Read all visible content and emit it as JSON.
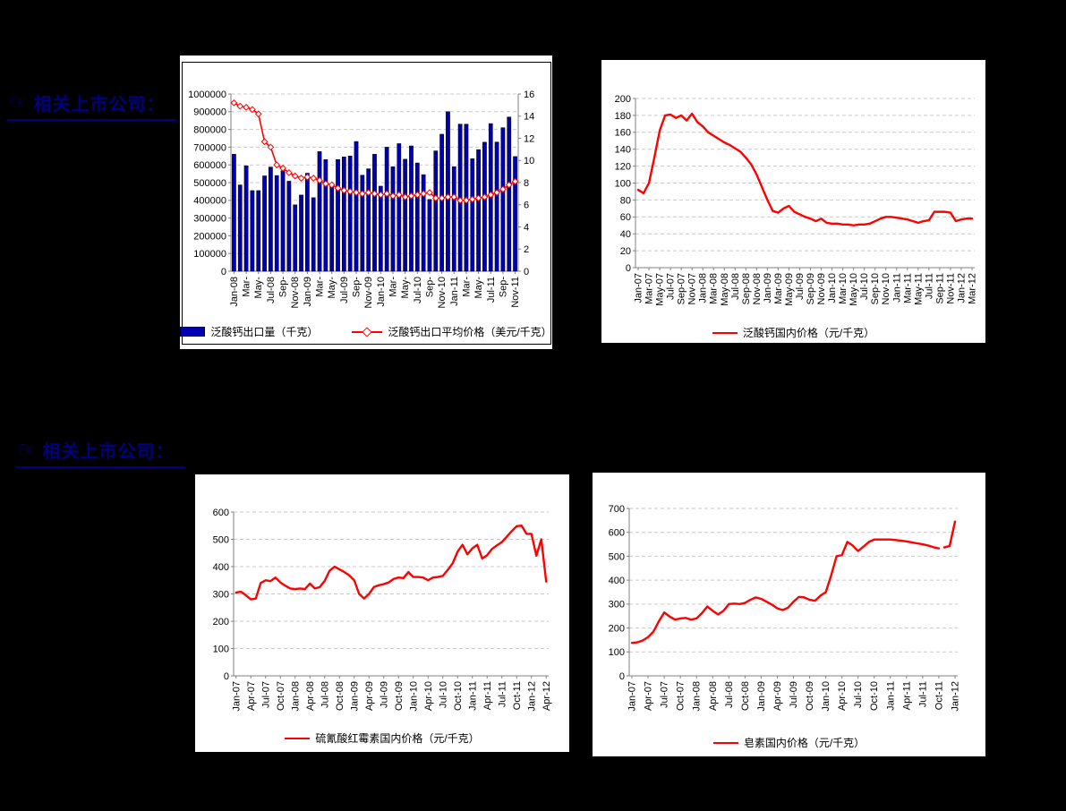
{
  "colors": {
    "page_bg": "#000000",
    "chart_bg": "#FFFFFF",
    "title": "#000080",
    "bar": "#0000B3",
    "line": "#FF0000",
    "grid": "#C9C9C9",
    "axis": "#808080",
    "text": "#000000"
  },
  "sections": [
    {
      "glyph": "☞",
      "title": "相关上市公司："
    },
    {
      "glyph": "☞",
      "title": "相关上市公司："
    }
  ],
  "chart_data": [
    {
      "type": "bar",
      "title": "",
      "categories": [
        "Jan-08",
        "Feb-08",
        "Mar-08",
        "Apr-08",
        "May-08",
        "Jun-08",
        "Jul-08",
        "Aug-08",
        "Sep-08",
        "Oct-08",
        "Nov-08",
        "Dec-08",
        "Jan-09",
        "Feb-09",
        "Mar-09",
        "Apr-09",
        "May-09",
        "Jun-09",
        "Jul-09",
        "Aug-09",
        "Sep-09",
        "Oct-09",
        "Nov-09",
        "Dec-09",
        "Jan-10",
        "Feb-10",
        "Mar-10",
        "Apr-10",
        "May-10",
        "Jun-10",
        "Jul-10",
        "Aug-10",
        "Sep-10",
        "Oct-10",
        "Nov-10",
        "Dec-10",
        "Jan-11",
        "Feb-11",
        "Mar-11",
        "Apr-11",
        "May-11",
        "Jun-11",
        "Jul-11",
        "Aug-11",
        "Sep-11",
        "Oct-11",
        "Nov-11"
      ],
      "x_tick_step": 2,
      "x_tick_labels": [
        "Jan-08",
        "Mar-",
        "May-",
        "Jul-08",
        "Sep-",
        "Nov-08",
        "Jan-09",
        "Mar-",
        "May-",
        "Jul-09",
        "Sep-",
        "Nov-09",
        "Jan-10",
        "Mar-",
        "May-",
        "Jul-10",
        "Sep-",
        "Nov-10",
        "Jan-11",
        "Mar-",
        "May-",
        "Jul-11",
        "Sep-",
        "Nov-11"
      ],
      "y_axis_left": {
        "min": 0,
        "max": 1000000,
        "step": 100000
      },
      "y_axis_right": {
        "min": 0,
        "max": 16,
        "step": 2
      },
      "grid": "dashed",
      "legend_position": "bottom",
      "series": [
        {
          "name": "泛酸钙出口量（千克）",
          "type": "bar",
          "axis": "left",
          "color": "#0000B3",
          "values": [
            660000,
            487000,
            595000,
            455000,
            455000,
            538000,
            588000,
            540000,
            567000,
            508000,
            375000,
            430000,
            553000,
            415000,
            675000,
            630000,
            485000,
            630000,
            645000,
            650000,
            732000,
            542000,
            578000,
            660000,
            480000,
            700000,
            590000,
            720000,
            632000,
            707000,
            611000,
            545000,
            405000,
            679000,
            773000,
            900000,
            590000,
            830000,
            830000,
            635000,
            686000,
            728000,
            833000,
            729000,
            810000,
            870000,
            647000
          ]
        },
        {
          "name": "泛酸钙出口平均价格（美元/千克）",
          "type": "line",
          "axis": "right",
          "color": "#FF0000",
          "marker": "open-diamond",
          "values": [
            15.2,
            14.9,
            14.8,
            14.6,
            14.2,
            11.7,
            11.2,
            9.6,
            9.3,
            8.9,
            8.6,
            8.4,
            8.5,
            8.4,
            8.2,
            7.9,
            7.8,
            7.5,
            7.3,
            7.2,
            7.1,
            7.0,
            7.1,
            7.0,
            6.9,
            7.0,
            6.8,
            6.9,
            6.7,
            6.8,
            6.9,
            7.0,
            7.1,
            6.6,
            6.6,
            6.7,
            6.7,
            6.4,
            6.4,
            6.5,
            6.6,
            6.7,
            6.9,
            7.1,
            7.4,
            7.8,
            8.1
          ]
        }
      ]
    },
    {
      "type": "line",
      "title": "",
      "categories": [
        "Jan-07",
        "Feb-07",
        "Mar-07",
        "Apr-07",
        "May-07",
        "Jun-07",
        "Jul-07",
        "Aug-07",
        "Sep-07",
        "Oct-07",
        "Nov-07",
        "Dec-07",
        "Jan-08",
        "Feb-08",
        "Mar-08",
        "Apr-08",
        "May-08",
        "Jun-08",
        "Jul-08",
        "Aug-08",
        "Sep-08",
        "Oct-08",
        "Nov-08",
        "Dec-08",
        "Jan-09",
        "Feb-09",
        "Mar-09",
        "Apr-09",
        "May-09",
        "Jun-09",
        "Jul-09",
        "Aug-09",
        "Sep-09",
        "Oct-09",
        "Nov-09",
        "Dec-09",
        "Jan-10",
        "Feb-10",
        "Mar-10",
        "Apr-10",
        "May-10",
        "Jun-10",
        "Jul-10",
        "Aug-10",
        "Sep-10",
        "Oct-10",
        "Nov-10",
        "Dec-10",
        "Jan-11",
        "Feb-11",
        "Mar-11",
        "Apr-11",
        "May-11",
        "Jun-11",
        "Jul-11",
        "Aug-11",
        "Sep-11",
        "Oct-11",
        "Nov-11",
        "Dec-11",
        "Jan-12",
        "Feb-12",
        "Mar-12"
      ],
      "x_tick_step": 2,
      "x_tick_labels": [
        "Jan-07",
        "Mar-07",
        "May-07",
        "Jul-07",
        "Sep-07",
        "Nov-07",
        "Jan-08",
        "Mar-08",
        "May-08",
        "Jul-08",
        "Sep-08",
        "Nov-08",
        "Jan-09",
        "Mar-09",
        "May-09",
        "Jul-09",
        "Sep-09",
        "Nov-09",
        "Jan-10",
        "Mar-10",
        "May-10",
        "Jul-10",
        "Sep-10",
        "Nov-10",
        "Jan-11",
        "Mar-11",
        "May-11",
        "Jul-11",
        "Sep-11",
        "Nov-11",
        "Jan-12",
        "Mar-12"
      ],
      "y_axis": {
        "min": 0,
        "max": 200,
        "step": 20
      },
      "grid": "dashed",
      "legend_position": "bottom",
      "series": [
        {
          "name": "泛酸钙国内价格（元/千克）",
          "type": "line",
          "axis": "left",
          "color": "#FF0000",
          "values": [
            92,
            88,
            100,
            130,
            162,
            180,
            181,
            177,
            180,
            174,
            182,
            172,
            167,
            160,
            156,
            152,
            148,
            145,
            141,
            137,
            130,
            122,
            110,
            95,
            80,
            67,
            65,
            70,
            73,
            66,
            63,
            60,
            58,
            55,
            58,
            53,
            52,
            52,
            51,
            51,
            50,
            51,
            51,
            52,
            55,
            58,
            60,
            60,
            59,
            58,
            57,
            55,
            53,
            55,
            56,
            66,
            66,
            66,
            65,
            55,
            57,
            58,
            58
          ]
        }
      ]
    },
    {
      "type": "line",
      "title": "",
      "categories": [
        "Jan-07",
        "Feb-07",
        "Mar-07",
        "Apr-07",
        "May-07",
        "Jun-07",
        "Jul-07",
        "Aug-07",
        "Sep-07",
        "Oct-07",
        "Nov-07",
        "Dec-07",
        "Jan-08",
        "Feb-08",
        "Mar-08",
        "Apr-08",
        "May-08",
        "Jun-08",
        "Jul-08",
        "Aug-08",
        "Sep-08",
        "Oct-08",
        "Nov-08",
        "Dec-08",
        "Jan-09",
        "Feb-09",
        "Mar-09",
        "Apr-09",
        "May-09",
        "Jun-09",
        "Jul-09",
        "Aug-09",
        "Sep-09",
        "Oct-09",
        "Nov-09",
        "Dec-09",
        "Jan-10",
        "Feb-10",
        "Mar-10",
        "Apr-10",
        "May-10",
        "Jun-10",
        "Jul-10",
        "Aug-10",
        "Sep-10",
        "Oct-10",
        "Nov-10",
        "Dec-10",
        "Jan-11",
        "Feb-11",
        "Mar-11",
        "Apr-11",
        "May-11",
        "Jun-11",
        "Jul-11",
        "Aug-11",
        "Sep-11",
        "Oct-11",
        "Nov-11",
        "Dec-11",
        "Jan-12",
        "Feb-12",
        "Mar-12",
        "Apr-12"
      ],
      "x_tick_step": 3,
      "x_tick_labels": [
        "Jan-07",
        "Apr-07",
        "Jul-07",
        "Oct-07",
        "Jan-08",
        "Apr-08",
        "Jul-08",
        "Oct-08",
        "Jan-09",
        "Apr-09",
        "Jul-09",
        "Oct-09",
        "Jan-10",
        "Apr-10",
        "Jul-10",
        "Oct-10",
        "Jan-11",
        "Apr-11",
        "Jul-11",
        "Oct-11",
        "Jan-12",
        "Apr-12"
      ],
      "y_axis": {
        "min": 0,
        "max": 600,
        "step": 100
      },
      "grid": "dashed",
      "legend_position": "bottom",
      "series": [
        {
          "name": "硫氰酸红霉素国内价格（元/千克）",
          "type": "line",
          "axis": "left",
          "color": "#FF0000",
          "values": [
            305,
            308,
            295,
            280,
            283,
            340,
            350,
            347,
            360,
            342,
            330,
            320,
            318,
            320,
            318,
            338,
            320,
            325,
            348,
            385,
            400,
            390,
            380,
            368,
            350,
            300,
            283,
            300,
            325,
            332,
            336,
            342,
            355,
            360,
            358,
            380,
            362,
            362,
            360,
            350,
            360,
            362,
            366,
            388,
            412,
            455,
            480,
            445,
            467,
            480,
            430,
            442,
            465,
            478,
            490,
            510,
            530,
            548,
            550,
            520,
            520,
            440,
            500,
            345
          ]
        }
      ]
    },
    {
      "type": "line",
      "title": "",
      "categories": [
        "Jan-07",
        "Feb-07",
        "Mar-07",
        "Apr-07",
        "May-07",
        "Jun-07",
        "Jul-07",
        "Aug-07",
        "Sep-07",
        "Oct-07",
        "Nov-07",
        "Dec-07",
        "Jan-08",
        "Feb-08",
        "Mar-08",
        "Apr-08",
        "May-08",
        "Jun-08",
        "Jul-08",
        "Aug-08",
        "Sep-08",
        "Oct-08",
        "Nov-08",
        "Dec-08",
        "Jan-09",
        "Feb-09",
        "Mar-09",
        "Apr-09",
        "May-09",
        "Jun-09",
        "Jul-09",
        "Aug-09",
        "Sep-09",
        "Oct-09",
        "Nov-09",
        "Dec-09",
        "Jan-10",
        "Feb-10",
        "Mar-10",
        "Apr-10",
        "May-10",
        "Jun-10",
        "Jul-10",
        "Aug-10",
        "Sep-10",
        "Oct-10",
        "Nov-10",
        "Dec-10",
        "Jan-11",
        "Feb-11",
        "Mar-11",
        "Apr-11",
        "May-11",
        "Jun-11",
        "Jul-11",
        "Aug-11",
        "Sep-11",
        "Oct-11",
        "Nov-11",
        "Dec-11",
        "Jan-12"
      ],
      "x_tick_step": 3,
      "x_tick_labels": [
        "Jan-07",
        "Apr-07",
        "Jul-07",
        "Oct-07",
        "Jan-08",
        "Apr-08",
        "Jul-08",
        "Oct-08",
        "Jan-09",
        "Apr-09",
        "Jul-09",
        "Oct-09",
        "Jan-10",
        "Apr-10",
        "Jul-10",
        "Oct-10",
        "Jan-11",
        "Apr-11",
        "Jul-11",
        "Oct-11",
        "Jan-12"
      ],
      "y_axis": {
        "min": 0,
        "max": 700,
        "step": 100
      },
      "grid": "dashed",
      "legend_position": "bottom",
      "series": [
        {
          "name": "皂素国内价格（元/千克）",
          "type": "line",
          "axis": "left",
          "color": "#FF0000",
          "gaps_after": [
            57
          ],
          "values": [
            138,
            140,
            148,
            162,
            185,
            228,
            265,
            248,
            235,
            240,
            242,
            235,
            240,
            262,
            290,
            272,
            257,
            272,
            300,
            302,
            300,
            305,
            318,
            328,
            322,
            310,
            298,
            282,
            275,
            285,
            310,
            330,
            328,
            318,
            314,
            335,
            350,
            420,
            500,
            505,
            560,
            545,
            522,
            540,
            560,
            570,
            570,
            570,
            570,
            568,
            565,
            562,
            558,
            554,
            550,
            545,
            538,
            533,
            537,
            543,
            645
          ]
        }
      ]
    }
  ]
}
